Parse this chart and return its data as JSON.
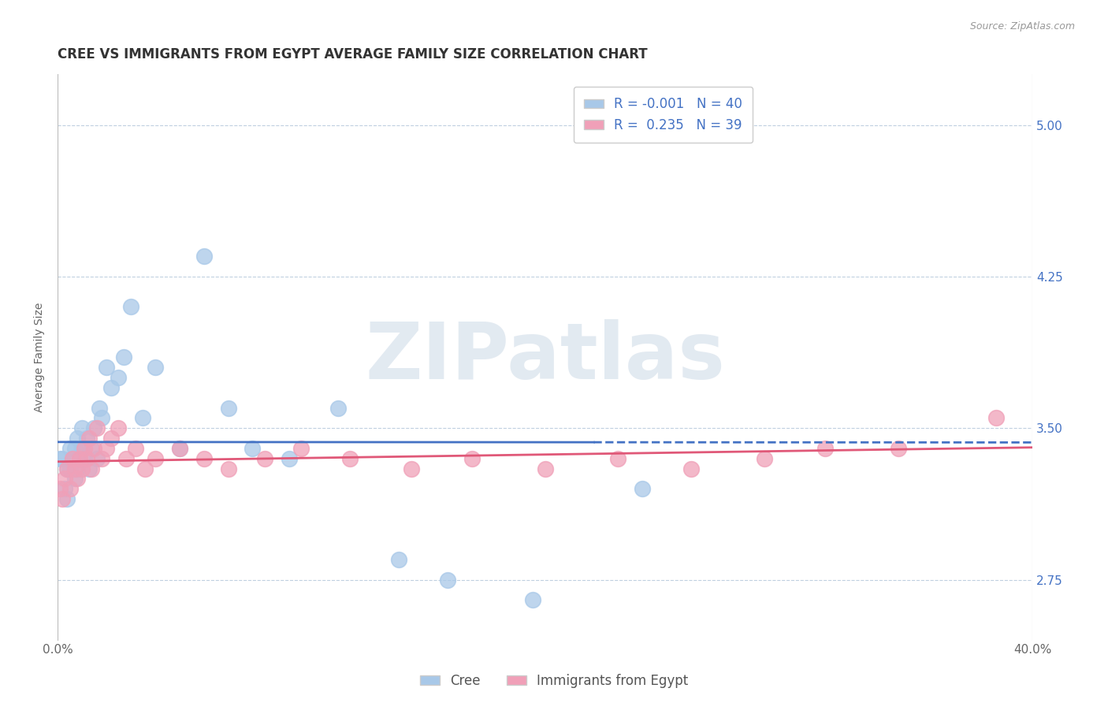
{
  "title": "CREE VS IMMIGRANTS FROM EGYPT AVERAGE FAMILY SIZE CORRELATION CHART",
  "source": "Source: ZipAtlas.com",
  "ylabel": "Average Family Size",
  "yticks": [
    2.75,
    3.5,
    4.25,
    5.0
  ],
  "xlim": [
    0.0,
    0.4
  ],
  "ylim": [
    2.45,
    5.25
  ],
  "cree_R": -0.001,
  "cree_N": 40,
  "egypt_R": 0.235,
  "egypt_N": 39,
  "cree_color": "#a8c8e8",
  "egypt_color": "#f0a0b8",
  "cree_line_color": "#4472c4",
  "egypt_line_color": "#e05878",
  "background_color": "#ffffff",
  "grid_color": "#c0d0e0",
  "axis_color": "#4472c4",
  "watermark_color": "#d0dce8",
  "cree_x": [
    0.001,
    0.002,
    0.003,
    0.004,
    0.004,
    0.005,
    0.005,
    0.006,
    0.007,
    0.007,
    0.008,
    0.008,
    0.009,
    0.01,
    0.01,
    0.011,
    0.012,
    0.013,
    0.014,
    0.015,
    0.016,
    0.017,
    0.018,
    0.02,
    0.022,
    0.025,
    0.027,
    0.03,
    0.035,
    0.04,
    0.05,
    0.06,
    0.07,
    0.08,
    0.095,
    0.115,
    0.14,
    0.16,
    0.195,
    0.24
  ],
  "cree_y": [
    3.35,
    3.35,
    3.2,
    3.3,
    3.15,
    3.4,
    3.3,
    3.35,
    3.4,
    3.25,
    3.45,
    3.3,
    3.35,
    3.5,
    3.4,
    3.35,
    3.45,
    3.3,
    3.4,
    3.5,
    3.35,
    3.6,
    3.55,
    3.8,
    3.7,
    3.75,
    3.85,
    4.1,
    3.55,
    3.8,
    3.4,
    4.35,
    3.6,
    3.4,
    3.35,
    3.6,
    2.85,
    2.75,
    2.65,
    3.2
  ],
  "egypt_x": [
    0.001,
    0.002,
    0.003,
    0.004,
    0.005,
    0.006,
    0.007,
    0.008,
    0.009,
    0.01,
    0.011,
    0.012,
    0.013,
    0.014,
    0.015,
    0.016,
    0.018,
    0.02,
    0.022,
    0.025,
    0.028,
    0.032,
    0.036,
    0.04,
    0.05,
    0.06,
    0.07,
    0.085,
    0.1,
    0.12,
    0.145,
    0.17,
    0.2,
    0.23,
    0.26,
    0.29,
    0.315,
    0.345,
    0.385
  ],
  "egypt_y": [
    3.2,
    3.15,
    3.25,
    3.3,
    3.2,
    3.35,
    3.3,
    3.25,
    3.35,
    3.3,
    3.4,
    3.35,
    3.45,
    3.3,
    3.4,
    3.5,
    3.35,
    3.4,
    3.45,
    3.5,
    3.35,
    3.4,
    3.3,
    3.35,
    3.4,
    3.35,
    3.3,
    3.35,
    3.4,
    3.35,
    3.3,
    3.35,
    3.3,
    3.35,
    3.3,
    3.35,
    3.4,
    3.4,
    3.55
  ],
  "watermark": "ZIPatlas",
  "title_fontsize": 12,
  "axis_label_fontsize": 10,
  "tick_fontsize": 11,
  "legend_fontsize": 12
}
